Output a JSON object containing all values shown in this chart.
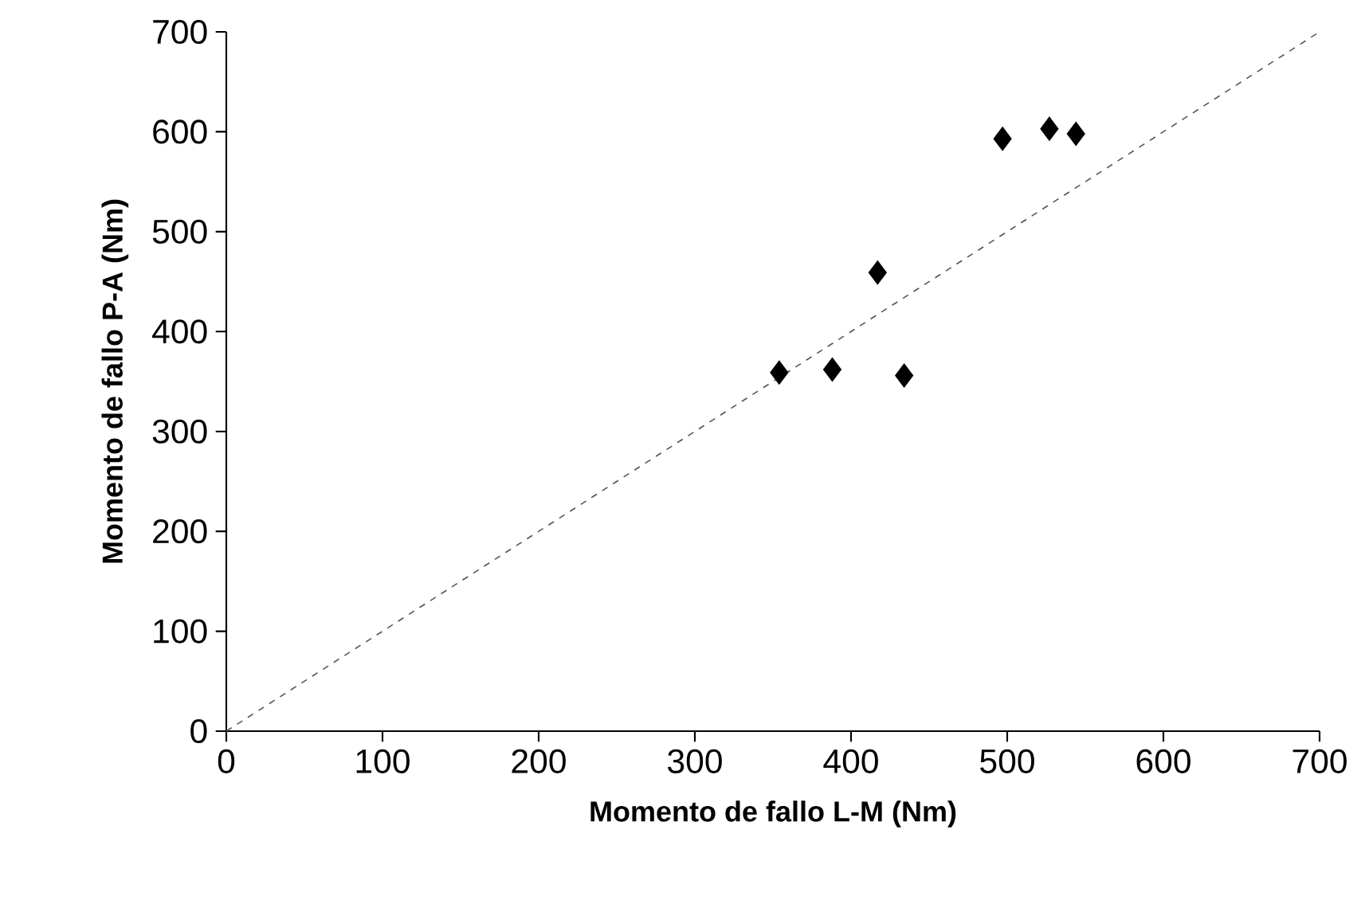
{
  "chart_data": {
    "type": "scatter",
    "xlabel": "Momento de fallo L-M (Nm)",
    "ylabel": "Momento de fallo P-A (Nm)",
    "xlim": [
      0,
      700
    ],
    "ylim": [
      0,
      700
    ],
    "xticks": [
      0,
      100,
      200,
      300,
      400,
      500,
      600,
      700
    ],
    "yticks": [
      0,
      100,
      200,
      300,
      400,
      500,
      600,
      700
    ],
    "marker": "diamond",
    "series": [
      {
        "color": "#000000",
        "x": [
          354,
          388,
          417,
          434,
          497,
          527,
          544
        ],
        "values": [
          359,
          362,
          459,
          356,
          593,
          603,
          598
        ]
      },
      {
        "type": "line",
        "color": "#555555",
        "line_style": "dashed",
        "marker": "none",
        "x": [
          0,
          700
        ],
        "values": [
          0,
          700
        ]
      }
    ]
  }
}
